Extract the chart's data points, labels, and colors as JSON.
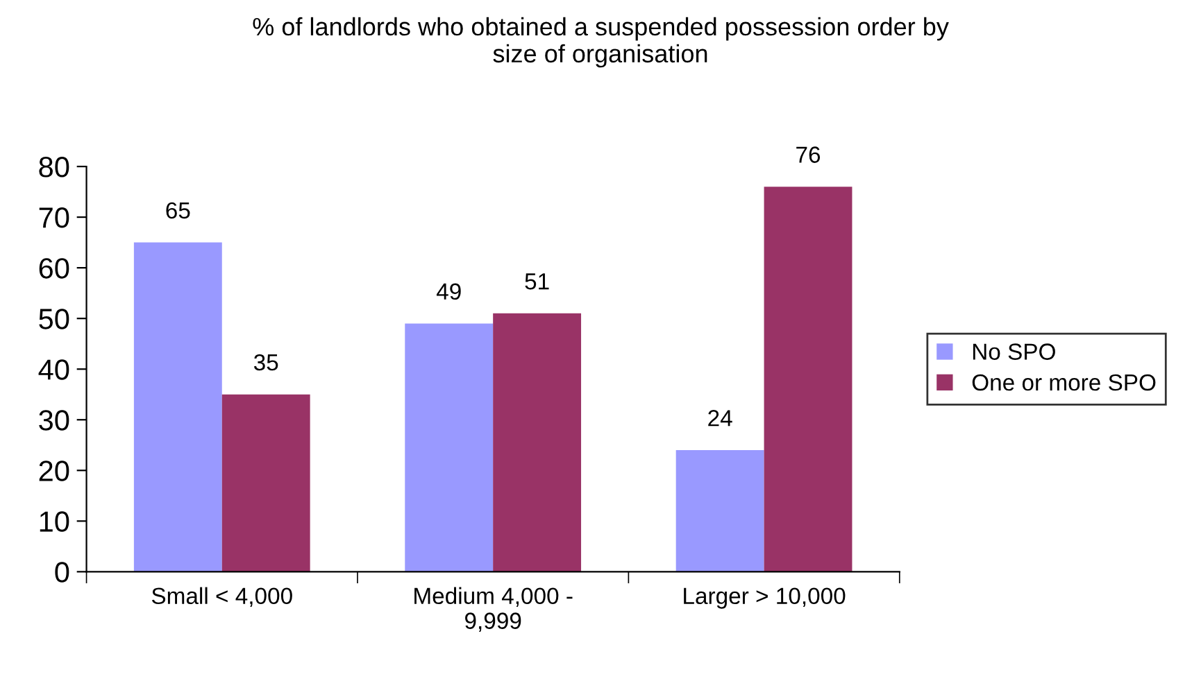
{
  "chart_data": {
    "type": "bar",
    "title": "% of landlords who obtained a suspended possession order by\nsize of organisation",
    "categories": [
      "Small < 4,000",
      "Medium 4,000 -\n9,999",
      "Larger > 10,000"
    ],
    "series": [
      {
        "name": "No SPO",
        "color": "#9999ff",
        "values": [
          65,
          49,
          24
        ]
      },
      {
        "name": "One or more SPO",
        "color": "#993366",
        "values": [
          35,
          51,
          76
        ]
      }
    ],
    "ylim": [
      0,
      80
    ],
    "yticks": [
      0,
      10,
      20,
      30,
      40,
      50,
      60,
      70,
      80
    ],
    "data_labels": true,
    "legend": "right",
    "grid": false
  }
}
